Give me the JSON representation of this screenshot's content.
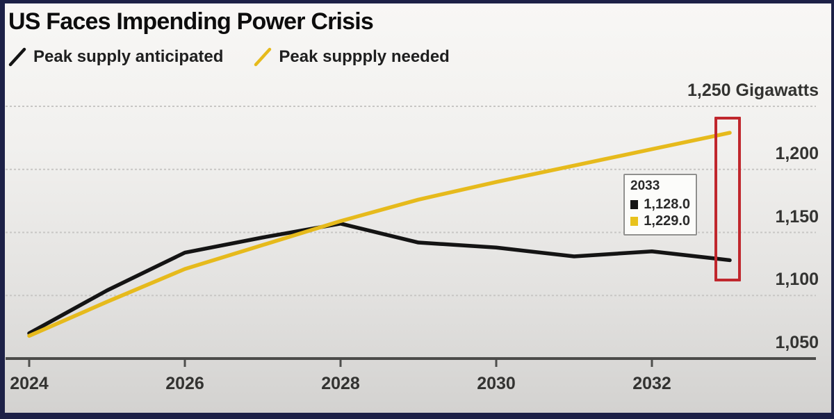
{
  "header": {
    "title": "US Faces Impending Power Crisis"
  },
  "legend": [
    {
      "label": "Peak supply anticipated",
      "color": "#141414"
    },
    {
      "label": "Peak suppply needed",
      "color": "#e6ba1c"
    }
  ],
  "chart_data": {
    "type": "line",
    "title": "US Faces Impending Power Crisis",
    "x": [
      2024,
      2025,
      2026,
      2027,
      2028,
      2029,
      2030,
      2031,
      2032,
      2033
    ],
    "series": [
      {
        "name": "Peak supply anticipated",
        "color": "#141414",
        "values": [
          1070,
          1104,
          1134,
          1146,
          1157,
          1142,
          1138,
          1131,
          1135,
          1128
        ]
      },
      {
        "name": "Peak suppply needed",
        "color": "#e6ba1c",
        "values": [
          1068,
          1095,
          1121,
          1140,
          1159,
          1176,
          1190,
          1203,
          1216,
          1229
        ]
      }
    ],
    "xticks": [
      2024,
      2026,
      2028,
      2030,
      2032
    ],
    "yticks": [
      {
        "value": 1050,
        "label": "1,050"
      },
      {
        "value": 1100,
        "label": "1,100"
      },
      {
        "value": 1150,
        "label": "1,150"
      },
      {
        "value": 1200,
        "label": "1,200"
      },
      {
        "value": 1250,
        "label": "1,250 Gigawatts"
      }
    ],
    "ylabel_unit": "Gigawatts",
    "xlim": [
      2024,
      2033
    ],
    "ylim": [
      1050,
      1250
    ],
    "grid": "horizontal-dashed",
    "legend_position": "top-left"
  },
  "tooltip": {
    "year": "2033",
    "rows": [
      {
        "series": "Peak supply anticipated",
        "value": "1,128.0",
        "color": "#141414"
      },
      {
        "series": "Peak suppply needed",
        "value": "1,229.0",
        "color": "#e8c21c"
      }
    ]
  },
  "annotation": {
    "type": "highlight-rectangle",
    "color": "#c0272d",
    "target": "2033 endpoints"
  },
  "colors": {
    "accent_yellow": "#e6ba1c",
    "line_black": "#141414",
    "highlight_red": "#c0272d",
    "frame_navy": "#1d2147",
    "gridline": "#c7c6c4",
    "axis": "#4b4b49"
  }
}
